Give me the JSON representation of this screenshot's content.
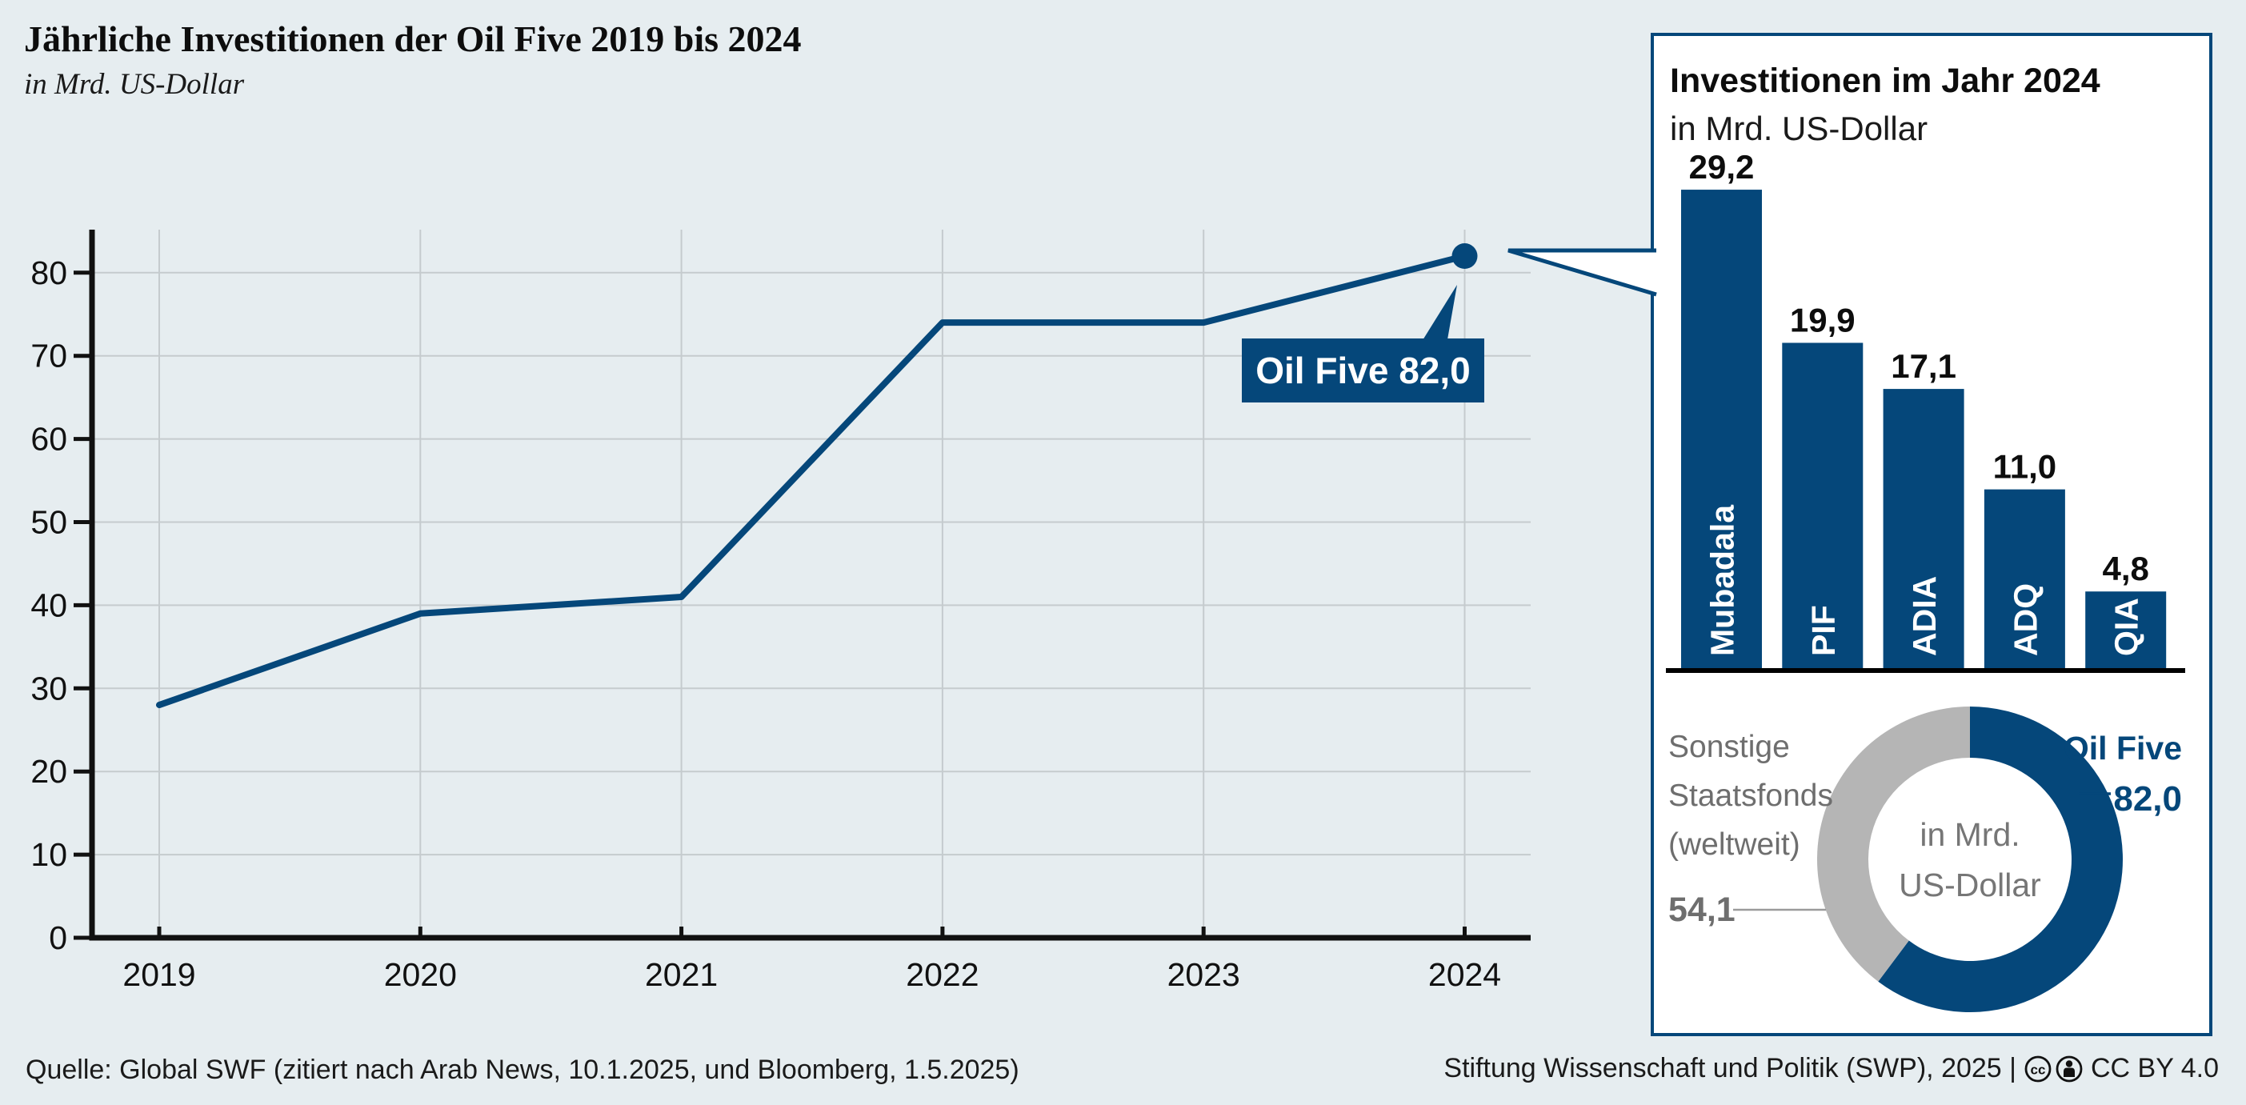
{
  "page": {
    "title": "Jährliche Investitionen der Oil Five 2019 bis 2024",
    "subtitle": "in Mrd. US-Dollar",
    "source": "Quelle: Global SWF (zitiert nach Arab News, 10.1.2025, und Bloomberg, 1.5.2025)",
    "attribution": "Stiftung Wissenschaft und Politik (SWP), 2025 |",
    "license": "CC BY 4.0"
  },
  "colors": {
    "blue": "#05477a",
    "gray_slice": "#b5b5b5",
    "background": "#e6edf0",
    "grid": "#c5cbce",
    "axis": "#111111",
    "gray_text": "#6e6e6e",
    "white": "#ffffff"
  },
  "ui": {
    "bubble_label": "Oil Five 82,0",
    "donut": {
      "other_lines": [
        "Sonstige",
        "Staatsfonds",
        "(weltweit)"
      ],
      "other_value": "54,1",
      "main_label": "Oil Five",
      "main_value": "82,0",
      "center_lines": [
        "in Mrd.",
        "US-Dollar"
      ]
    }
  },
  "chart_data": [
    {
      "type": "line",
      "title": "Jährliche Investitionen der Oil Five 2019 bis 2024",
      "subtitle": "in Mrd. US-Dollar",
      "x": [
        "2019",
        "2020",
        "2021",
        "2022",
        "2023",
        "2024"
      ],
      "values": [
        28,
        39,
        41,
        74,
        74,
        82
      ],
      "ylim": [
        0,
        80
      ],
      "ytick_step": 10,
      "grid": true,
      "line_color": "#05477a",
      "annotation": {
        "label": "Oil Five 82,0",
        "x": "2024",
        "value": 82.0
      }
    },
    {
      "type": "bar",
      "title": "Investitionen im Jahr 2024",
      "subtitle": "in Mrd. US-Dollar",
      "categories": [
        "Mubadala",
        "PIF",
        "ADIA",
        "ADQ",
        "QIA"
      ],
      "values": [
        29.2,
        19.9,
        17.1,
        11.0,
        4.8
      ],
      "value_labels": [
        "29,2",
        "19,9",
        "17,1",
        "11,0",
        "4,8"
      ],
      "bar_color": "#05477a"
    },
    {
      "type": "pie",
      "donut": true,
      "center_label": "in Mrd. US-Dollar",
      "segments": [
        {
          "label": "Oil Five",
          "value": 82.0,
          "display": "82,0",
          "color": "#05477a"
        },
        {
          "label": "Sonstige Staatsfonds (weltweit)",
          "value": 54.1,
          "display": "54,1",
          "color": "#b5b5b5"
        }
      ]
    }
  ]
}
